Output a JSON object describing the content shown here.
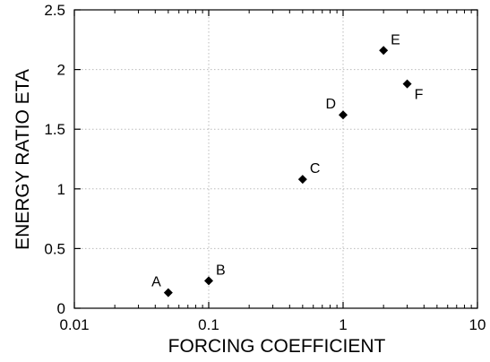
{
  "chart_data": {
    "type": "scatter",
    "title": "",
    "xlabel": "FORCING COEFFICIENT",
    "ylabel": "ENERGY RATIO ETA",
    "xscale": "log",
    "xlim": [
      0.01,
      10
    ],
    "ylim": [
      0,
      2.5
    ],
    "grid": true,
    "x_ticks": [
      {
        "value": 0.01,
        "label": "0.01"
      },
      {
        "value": 0.1,
        "label": "0.1"
      },
      {
        "value": 1,
        "label": "1"
      },
      {
        "value": 10,
        "label": "10"
      }
    ],
    "y_ticks": [
      {
        "value": 0,
        "label": "0"
      },
      {
        "value": 0.5,
        "label": "0.5"
      },
      {
        "value": 1,
        "label": "1"
      },
      {
        "value": 1.5,
        "label": "1.5"
      },
      {
        "value": 2,
        "label": "2"
      },
      {
        "value": 2.5,
        "label": "2.5"
      }
    ],
    "points": [
      {
        "label": "A",
        "x": 0.05,
        "y": 0.13,
        "label_pos": "upper-left"
      },
      {
        "label": "B",
        "x": 0.1,
        "y": 0.23,
        "label_pos": "upper-right"
      },
      {
        "label": "C",
        "x": 0.5,
        "y": 1.08,
        "label_pos": "upper-right"
      },
      {
        "label": "D",
        "x": 1.0,
        "y": 1.62,
        "label_pos": "upper-left"
      },
      {
        "label": "E",
        "x": 2.0,
        "y": 2.16,
        "label_pos": "upper-right"
      },
      {
        "label": "F",
        "x": 3.0,
        "y": 1.88,
        "label_pos": "lower-right"
      }
    ],
    "marker": "diamond",
    "marker_color": "#000000",
    "grid_color": "#bbbbbb"
  }
}
